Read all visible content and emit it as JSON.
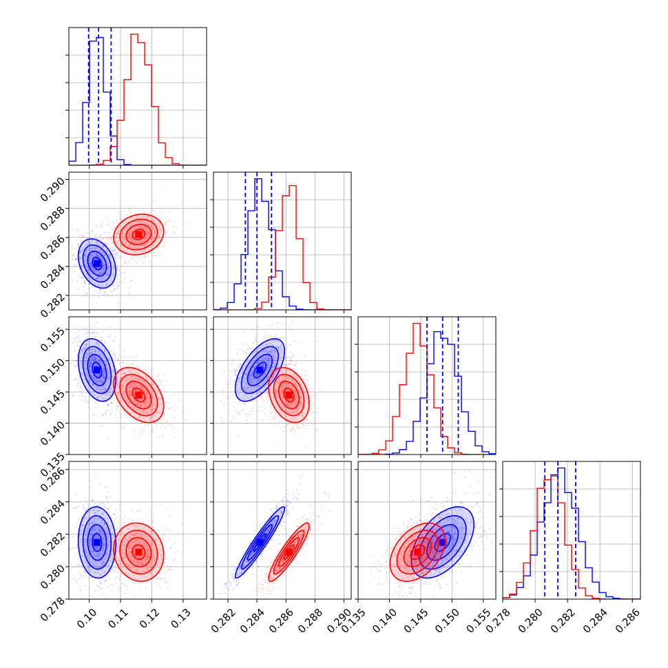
{
  "chart_data": {
    "type": "corner",
    "params": [
      {
        "id": "p0",
        "range": [
          0.0935,
          0.1375
        ],
        "ticks": [
          "0.10",
          "0.11",
          "0.12",
          "0.13"
        ],
        "tick_values": [
          0.1,
          0.11,
          0.12,
          0.13
        ]
      },
      {
        "id": "p1",
        "range": [
          0.281,
          0.2905
        ],
        "ticks": [
          "0.282",
          "0.284",
          "0.286",
          "0.288",
          "0.290"
        ],
        "tick_values": [
          0.282,
          0.284,
          0.286,
          0.288,
          0.29
        ]
      },
      {
        "id": "p2",
        "range": [
          0.135,
          0.157
        ],
        "ticks": [
          "0.135",
          "0.140",
          "0.145",
          "0.150",
          "0.155"
        ],
        "tick_values": [
          0.135,
          0.14,
          0.145,
          0.15,
          0.155
        ]
      },
      {
        "id": "p3",
        "range": [
          0.278,
          0.2865
        ],
        "ticks": [
          "0.278",
          "0.280",
          "0.282",
          "0.284",
          "0.286"
        ],
        "tick_values": [
          0.278,
          0.28,
          0.282,
          0.284,
          0.286
        ]
      }
    ],
    "grid": true,
    "series": [
      {
        "color": "#0000ff",
        "means": [
          0.1025,
          0.2842,
          0.1485,
          0.2815
        ],
        "sigmas": [
          0.003,
          0.00085,
          0.0025,
          0.0011
        ],
        "correlations": [
          [
            1,
            -0.3,
            -0.3,
            -0.05
          ],
          [
            -0.3,
            1,
            0.6,
            0.95
          ],
          [
            -0.3,
            0.6,
            1,
            0.5
          ],
          [
            -0.05,
            0.95,
            0.5,
            1
          ]
        ],
        "quantiles": [
          [
            0.0998,
            0.103,
            0.107
          ],
          [
            0.2832,
            0.284,
            0.285
          ],
          [
            0.146,
            0.1485,
            0.151
          ],
          [
            0.2806,
            0.2814,
            0.2825
          ]
        ]
      },
      {
        "color": "#ff0000",
        "means": [
          0.1158,
          0.2862,
          0.1445,
          0.2809
        ],
        "sigmas": [
          0.004,
          0.0007,
          0.0022,
          0.0009
        ],
        "correlations": [
          [
            1,
            0.15,
            -0.4,
            -0.1
          ],
          [
            0.15,
            1,
            -0.3,
            0.9
          ],
          [
            -0.4,
            -0.3,
            1,
            0.4
          ],
          [
            -0.1,
            0.9,
            0.4,
            1
          ]
        ]
      }
    ]
  }
}
